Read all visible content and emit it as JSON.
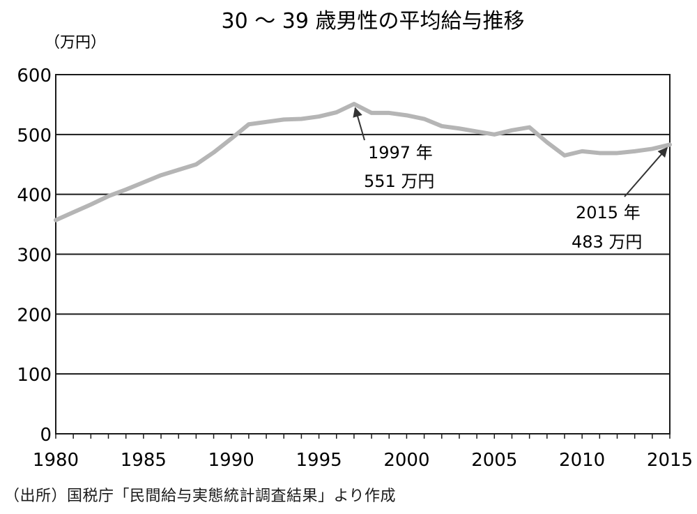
{
  "chart_data": {
    "type": "line",
    "title": "30 ～ 39 歳男性の平均給与推移",
    "ylabel": "（万円）",
    "xlabel": "",
    "xlim": [
      1980,
      2015
    ],
    "ylim": [
      0,
      600
    ],
    "y_ticks": [
      0,
      100,
      200,
      300,
      400,
      500,
      600
    ],
    "x_ticks": [
      1980,
      1985,
      1990,
      1995,
      2000,
      2005,
      2010,
      2015
    ],
    "grid": "horizontal",
    "line_color": "#b5b5b5",
    "series": [
      {
        "x": [
          1980,
          1981,
          1982,
          1983,
          1984,
          1985,
          1986,
          1987,
          1988,
          1989,
          1990,
          1991,
          1992,
          1993,
          1994,
          1995,
          1996,
          1997,
          1998,
          1999,
          2000,
          2001,
          2002,
          2003,
          2004,
          2005,
          2006,
          2007,
          2008,
          2009,
          2010,
          2011,
          2012,
          2013,
          2014,
          2015
        ],
        "values": [
          357,
          370,
          383,
          397,
          408,
          420,
          432,
          441,
          450,
          470,
          493,
          517,
          521,
          525,
          526,
          530,
          537,
          551,
          536,
          536,
          532,
          526,
          514,
          510,
          505,
          500,
          507,
          512,
          487,
          465,
          472,
          469,
          469,
          472,
          476,
          483
        ]
      }
    ],
    "annotations": [
      {
        "line1": "1997 年",
        "line2": "551 万円",
        "x": 1997,
        "y": 551
      },
      {
        "line1": "2015 年",
        "line2": "483 万円",
        "x": 2015,
        "y": 483
      }
    ]
  },
  "source": "（出所）国税庁「民間給与実態統計調査結果」より作成"
}
